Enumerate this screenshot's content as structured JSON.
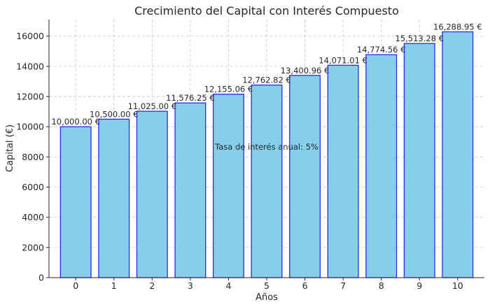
{
  "chart_data": {
    "type": "bar",
    "title": "Crecimiento del Capital con Interés Compuesto",
    "xlabel": "Años",
    "ylabel": "Capital (€)",
    "categories": [
      "0",
      "1",
      "2",
      "3",
      "4",
      "5",
      "6",
      "7",
      "8",
      "9",
      "10"
    ],
    "values": [
      10000.0,
      10500.0,
      11025.0,
      11576.25,
      12155.06,
      12762.82,
      13400.96,
      14071.01,
      14774.56,
      15513.28,
      16288.95
    ],
    "data_labels": [
      "10,000.00 €",
      "10,500.00 €",
      "11,025.00 €",
      "11,576.25 €",
      "12,155.06 €",
      "12,762.82 €",
      "13,400.96 €",
      "14,071.01 €",
      "14,774.56 €",
      "15,513.28 €",
      "16,288.95 €"
    ],
    "ylim": [
      0,
      17100
    ],
    "yticks": [
      0,
      2000,
      4000,
      6000,
      8000,
      10000,
      12000,
      14000,
      16000
    ],
    "annotation": "Tasa de interés anual: 5%",
    "grid": true,
    "bar_fill": "#87ceeb",
    "bar_edge": "#2b2bf0"
  }
}
